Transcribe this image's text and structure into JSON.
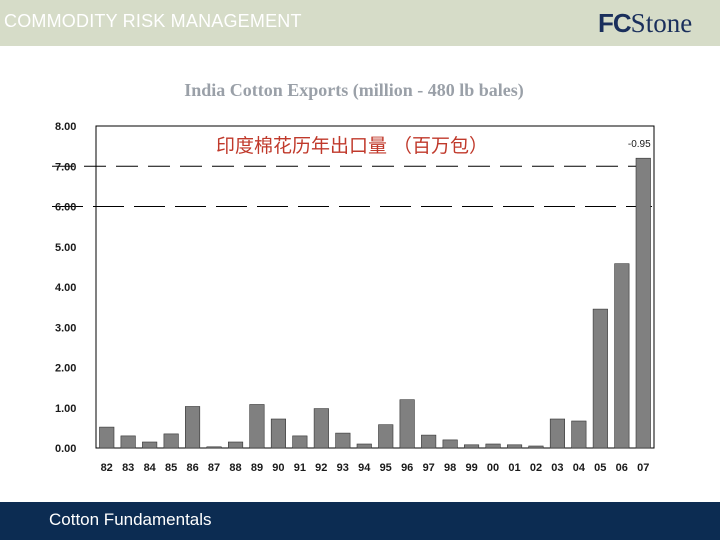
{
  "header": {
    "title": "COMMODITY RISK MANAGEMENT",
    "logo_fc": "FC",
    "logo_stone": "Stone"
  },
  "footer": {
    "text": "Cotton Fundamentals"
  },
  "colors": {
    "header_band": "#d6dcc8",
    "footer_band": "#0c2c52",
    "bar": "#808080",
    "chinese_title": "#c0392b",
    "title_shadow": "#9aa0a8"
  },
  "chart_data": {
    "type": "bar",
    "title": "India Cotton Exports (million - 480 lb bales)",
    "subtitle": "印度棉花历年出口量 （百万包）",
    "xlabel": "",
    "ylabel": "",
    "ylim": [
      0,
      8
    ],
    "yticks": [
      "0.00",
      "1.00",
      "2.00",
      "3.00",
      "4.00",
      "5.00",
      "6.00",
      "7.00",
      "8.00"
    ],
    "grid": false,
    "categories": [
      "82",
      "83",
      "84",
      "85",
      "86",
      "87",
      "88",
      "89",
      "90",
      "91",
      "92",
      "93",
      "94",
      "95",
      "96",
      "97",
      "98",
      "99",
      "00",
      "01",
      "02",
      "03",
      "04",
      "05",
      "06",
      "07"
    ],
    "values": [
      0.52,
      0.3,
      0.15,
      0.35,
      1.03,
      0.03,
      0.15,
      1.08,
      0.72,
      0.3,
      0.98,
      0.37,
      0.1,
      0.58,
      1.2,
      0.32,
      0.2,
      0.08,
      0.1,
      0.08,
      0.05,
      0.72,
      0.67,
      3.45,
      4.58,
      7.2
    ],
    "annotations": [
      {
        "text": "-0.95",
        "category": "07"
      }
    ]
  }
}
